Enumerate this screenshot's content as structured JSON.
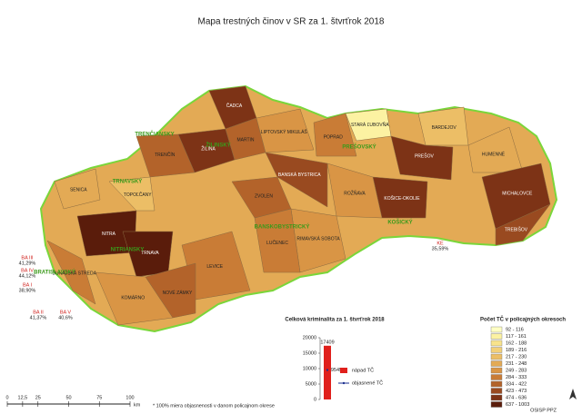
{
  "title": "Mapa trestných činov v SR za 1. štvrťrok 2018",
  "regions": [
    "BRATISLAVSKÝ",
    "TRNAVSKÝ",
    "TRENČIANSKY",
    "NITRIANSKY",
    "ŽILINSKÝ",
    "BANSKOBYSTRICKÝ",
    "PREŠOVSKÝ",
    "KOŠICKÝ"
  ],
  "districts": [
    {
      "name": "ČADCA",
      "class": 10
    },
    {
      "name": "ŽILINA",
      "class": 10
    },
    {
      "name": "MARTIN",
      "class": 8
    },
    {
      "name": "LIPTOVSKÝ MIKULÁŠ",
      "class": 6
    },
    {
      "name": "POPRAD",
      "class": 7
    },
    {
      "name": "STARÁ ĽUBOVŇA",
      "class": 1
    },
    {
      "name": "BARDEJOV",
      "class": 4
    },
    {
      "name": "PREŠOV",
      "class": 10
    },
    {
      "name": "HUMENNÉ",
      "class": 5
    },
    {
      "name": "MICHALOVCE",
      "class": 10
    },
    {
      "name": "TREBIŠOV",
      "class": 9
    },
    {
      "name": "KOŠICE-OKOLIE",
      "class": 10
    },
    {
      "name": "ROŽŇAVA",
      "class": 6
    },
    {
      "name": "RIMAVSKÁ SOBOTA",
      "class": 6
    },
    {
      "name": "LUČENEC",
      "class": 7
    },
    {
      "name": "ZVOLEN",
      "class": 8
    },
    {
      "name": "BANSKÁ BYSTRICA",
      "class": 9
    },
    {
      "name": "LEVICE",
      "class": 7
    },
    {
      "name": "NITRA",
      "class": 11
    },
    {
      "name": "TOPOĽČANY",
      "class": 4
    },
    {
      "name": "TRENČÍN",
      "class": 8
    },
    {
      "name": "SENICA",
      "class": 5
    },
    {
      "name": "TRNAVA",
      "class": 11
    },
    {
      "name": "DUNAJSKÁ STREDA",
      "class": 7
    },
    {
      "name": "KOMÁRNO",
      "class": 6
    },
    {
      "name": "NOVÉ ZÁMKY",
      "class": 8
    }
  ],
  "callouts": [
    {
      "name": "KE",
      "label": "35,59%"
    },
    {
      "name": "BA III",
      "label": "41,29%"
    },
    {
      "name": "BA IV",
      "label": "44,12%"
    },
    {
      "name": "BA I",
      "label": "38,90%"
    },
    {
      "name": "BA II",
      "label": "41,37%"
    },
    {
      "name": "BA V",
      "label": "40,6%"
    }
  ],
  "legend": {
    "title": "Počet TČ v policajných okresoch",
    "classes": [
      "92 - 116",
      "117 - 161",
      "162 - 188",
      "189 - 216",
      "217 - 230",
      "231 - 248",
      "249 - 283",
      "284 - 333",
      "334 - 422",
      "423 - 473",
      "474 - 636",
      "637 - 1003"
    ],
    "colors": [
      "#ffffc4",
      "#fcf2a2",
      "#f8e38c",
      "#f2d079",
      "#ecbe66",
      "#e3aa55",
      "#d99545",
      "#c97c36",
      "#b3632a",
      "#994a20",
      "#7d3316",
      "#5a1c0b"
    ]
  },
  "chart_data": {
    "type": "bar",
    "title": "Celková kriminalita za 1. štvrťrok 2018",
    "series": [
      {
        "name": "nápad TČ",
        "color": "#e0201c",
        "values": [
          17409
        ]
      },
      {
        "name": "objasnené TČ",
        "color": "#1b2f8f",
        "values": [
          9545
        ]
      }
    ],
    "ylim": [
      0,
      20000
    ],
    "yticks": [
      0,
      5000,
      10000,
      15000,
      20000
    ]
  },
  "scale_bar": {
    "ticks": [
      0,
      {
        "value": 12.5,
        "label": "12,5"
      },
      25,
      50,
      75,
      100
    ],
    "unit": "km"
  },
  "footnote": "* 100% miera objasnenosti v danom policajnom okrese",
  "credit": "OSISP PPZ"
}
